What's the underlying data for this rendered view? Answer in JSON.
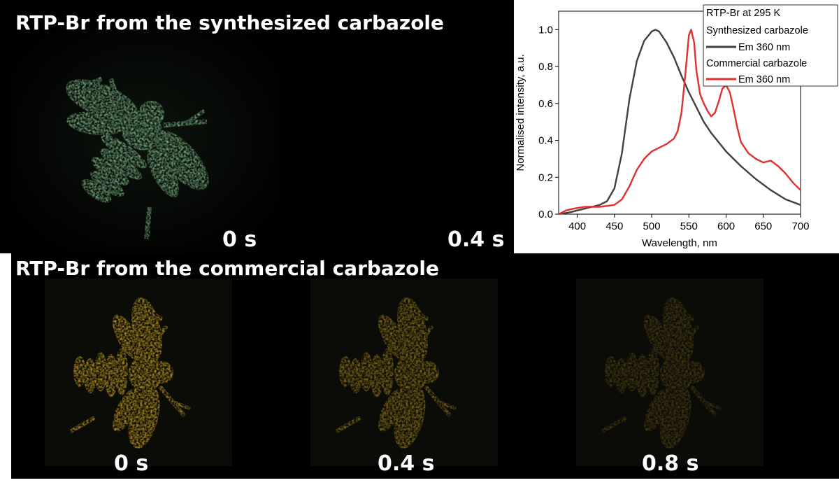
{
  "figure": {
    "top_caption": "RTP-Br from the synthesized carbazole",
    "bottom_caption": "RTP-Br from the commercial carbazole",
    "top_frames": [
      {
        "time": "0 s",
        "glow": "green",
        "intensity": 1.0
      },
      {
        "time": "0.4 s",
        "glow": "green",
        "intensity": 0.0
      }
    ],
    "bottom_frames": [
      {
        "time": "0 s",
        "glow": "yellow",
        "intensity": 1.0
      },
      {
        "time": "0.4 s",
        "glow": "yellow",
        "intensity": 0.72
      },
      {
        "time": "0.8 s",
        "glow": "yellow",
        "intensity": 0.35
      }
    ],
    "colors": {
      "green_glow": "#8fd49a",
      "yellow_glow": "#e0b421",
      "background": "#000000"
    }
  },
  "chart_data": {
    "type": "line",
    "xlabel": "Wavelength, nm",
    "ylabel": "Normalised intensity, a.u.",
    "xlim": [
      375,
      700
    ],
    "ylim": [
      0,
      1.1
    ],
    "xticks": [
      400,
      450,
      500,
      550,
      600,
      650,
      700
    ],
    "yticks": [
      0.0,
      0.2,
      0.4,
      0.6,
      0.8,
      1.0
    ],
    "legend_title": "RTP-Br at 295 K",
    "legend_placement": "top-right",
    "series": [
      {
        "group": "Synthesized carbazole",
        "name": "Em 360 nm",
        "color": "#404040",
        "x": [
          375,
          390,
          400,
          420,
          430,
          440,
          450,
          460,
          470,
          480,
          490,
          500,
          505,
          510,
          520,
          530,
          540,
          550,
          560,
          570,
          580,
          600,
          620,
          640,
          660,
          680,
          700
        ],
        "y": [
          0.0,
          0.01,
          0.02,
          0.04,
          0.05,
          0.07,
          0.14,
          0.33,
          0.62,
          0.83,
          0.94,
          0.99,
          1.0,
          0.99,
          0.93,
          0.85,
          0.75,
          0.66,
          0.58,
          0.5,
          0.44,
          0.34,
          0.26,
          0.19,
          0.13,
          0.08,
          0.05
        ]
      },
      {
        "group": "Commercial carbazole",
        "name": "Em 360 nm",
        "color": "#e03030",
        "x": [
          375,
          385,
          395,
          410,
          430,
          450,
          460,
          470,
          480,
          490,
          500,
          510,
          520,
          530,
          535,
          540,
          545,
          550,
          553,
          557,
          560,
          565,
          570,
          575,
          580,
          585,
          590,
          595,
          600,
          605,
          610,
          615,
          620,
          630,
          640,
          650,
          660,
          670,
          680,
          690,
          700
        ],
        "y": [
          0.0,
          0.02,
          0.03,
          0.04,
          0.04,
          0.05,
          0.08,
          0.15,
          0.24,
          0.3,
          0.34,
          0.36,
          0.38,
          0.41,
          0.45,
          0.55,
          0.75,
          0.97,
          1.0,
          0.93,
          0.78,
          0.65,
          0.6,
          0.56,
          0.53,
          0.55,
          0.61,
          0.68,
          0.7,
          0.66,
          0.57,
          0.47,
          0.39,
          0.33,
          0.3,
          0.28,
          0.29,
          0.26,
          0.22,
          0.17,
          0.13
        ]
      }
    ]
  }
}
